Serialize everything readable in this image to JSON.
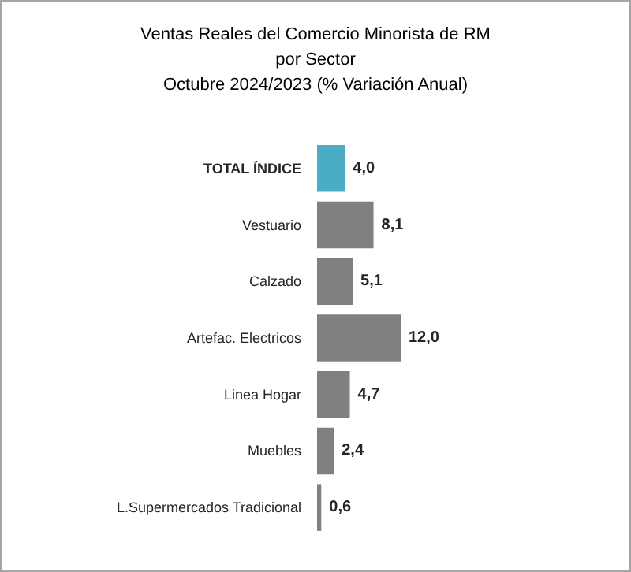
{
  "chart_data": {
    "type": "bar",
    "orientation": "horizontal",
    "title": "Ventas Reales del Comercio Minorista de RM\npor Sector\nOctubre 2024/2023 (% Variación Anual)",
    "categories": [
      "TOTAL ÍNDICE",
      "Vestuario",
      "Calzado",
      "Artefac. Electricos",
      "Linea Hogar",
      "Muebles",
      "L.Supermercados Tradicional"
    ],
    "values": [
      4.0,
      8.1,
      5.1,
      12.0,
      4.7,
      2.4,
      0.6
    ],
    "colors": [
      "#4bacc6",
      "#808080",
      "#808080",
      "#808080",
      "#808080",
      "#808080",
      "#808080"
    ],
    "value_labels": [
      "4,0",
      "8,1",
      "5,1",
      "12,0",
      "4,7",
      "2,4",
      "0,6"
    ],
    "tick_labels": "y"
  }
}
